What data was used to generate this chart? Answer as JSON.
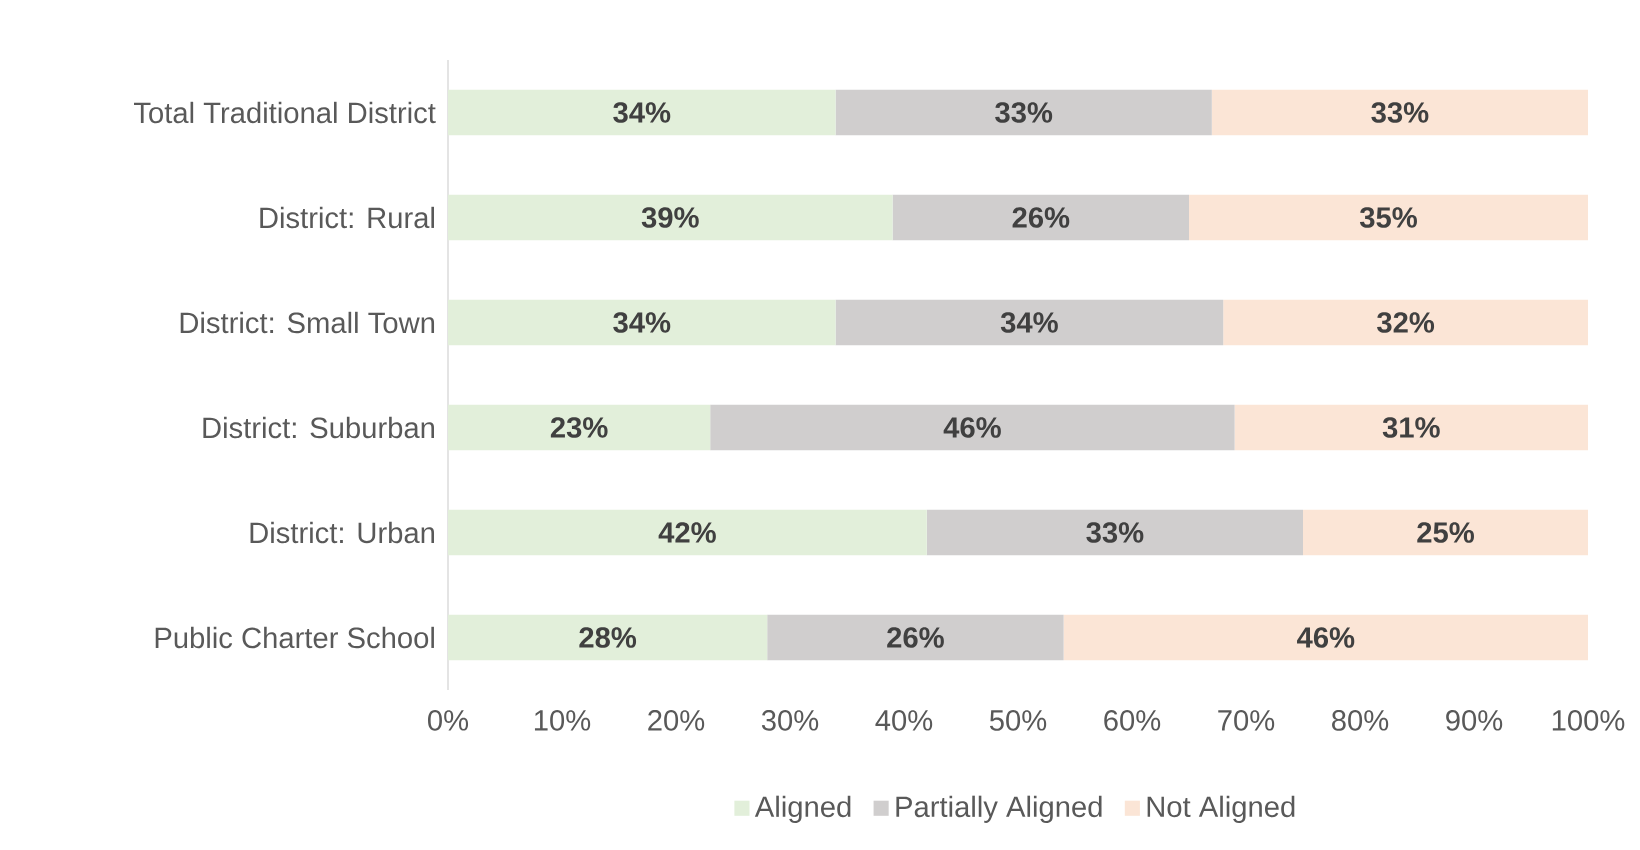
{
  "chart_data": {
    "type": "bar",
    "orientation": "horizontal",
    "stacked": true,
    "categories": [
      "Total Traditional District",
      "District: Rural",
      "District: Small Town",
      "District: Suburban",
      "District: Urban",
      "Public Charter School"
    ],
    "series": [
      {
        "name": "Aligned",
        "color": "#e2efda",
        "values": [
          34,
          39,
          34,
          23,
          42,
          28
        ],
        "value_labels": [
          "34%",
          "39%",
          "34%",
          "23%",
          "42%",
          "28%"
        ]
      },
      {
        "name": "Partially Aligned",
        "color": "#d0cece",
        "values": [
          33,
          26,
          34,
          46,
          33,
          26
        ],
        "value_labels": [
          "33%",
          "26%",
          "34%",
          "46%",
          "33%",
          "26%"
        ]
      },
      {
        "name": "Not Aligned",
        "color": "#fbe5d6",
        "values": [
          33,
          35,
          32,
          31,
          25,
          46
        ],
        "value_labels": [
          "33%",
          "35%",
          "32%",
          "31%",
          "25%",
          "46%"
        ]
      }
    ],
    "xlim": [
      0,
      100
    ],
    "xticks": [
      {
        "value": 0,
        "label": "0%"
      },
      {
        "value": 10,
        "label": "10%"
      },
      {
        "value": 20,
        "label": "20%"
      },
      {
        "value": 30,
        "label": "30%"
      },
      {
        "value": 40,
        "label": "40%"
      },
      {
        "value": 50,
        "label": "50%"
      },
      {
        "value": 60,
        "label": "60%"
      },
      {
        "value": 70,
        "label": "70%"
      },
      {
        "value": 80,
        "label": "80%"
      },
      {
        "value": 90,
        "label": "90%"
      },
      {
        "value": 100,
        "label": "100%"
      }
    ],
    "grid": false,
    "legend": "bottom"
  }
}
